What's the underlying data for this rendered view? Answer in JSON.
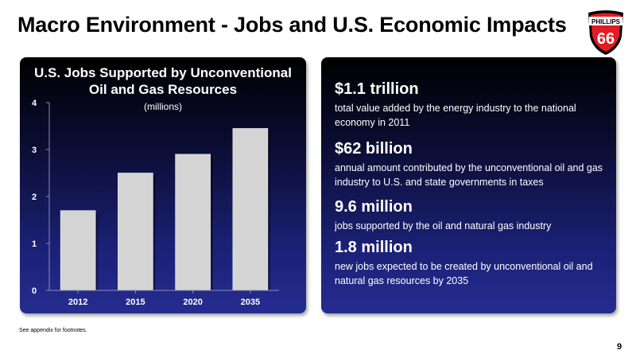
{
  "slide": {
    "title": "Macro Environment - Jobs and U.S. Economic Impacts",
    "footnote": "See appendix for footnotes.",
    "page_number": "9"
  },
  "logo": {
    "text": "PHILLIPS",
    "number": "66",
    "colors": {
      "red": "#e31b23",
      "black": "#000000",
      "white": "#ffffff"
    }
  },
  "chart_data": {
    "type": "bar",
    "title": "U.S. Jobs Supported by Unconventional Oil and Gas Resources",
    "title_lines": [
      "U.S. Jobs Supported by Unconventional",
      "Oil and Gas Resources"
    ],
    "subtitle": "(millions)",
    "categories": [
      "2012",
      "2015",
      "2020",
      "2035"
    ],
    "values": [
      1.7,
      2.5,
      2.9,
      3.45
    ],
    "ylim": [
      0,
      4
    ],
    "yticks": [
      "0",
      "1",
      "2",
      "3",
      "4"
    ],
    "xlabel": "",
    "ylabel": "",
    "grid": false,
    "bar_color": "#d4d4d4"
  },
  "facts": [
    {
      "value": "$1.1 trillion",
      "desc": "total value added by the energy industry to the national economy in 2011"
    },
    {
      "value": "$62 billion",
      "desc": "annual amount contributed by the unconventional oil and gas industry to U.S. and state governments in taxes"
    },
    {
      "value": "9.6 million",
      "desc": "jobs supported by the oil and natural gas industry"
    },
    {
      "value": "1.8 million",
      "desc": "new jobs expected to be created by unconventional oil and natural gas resources by 2035"
    }
  ]
}
